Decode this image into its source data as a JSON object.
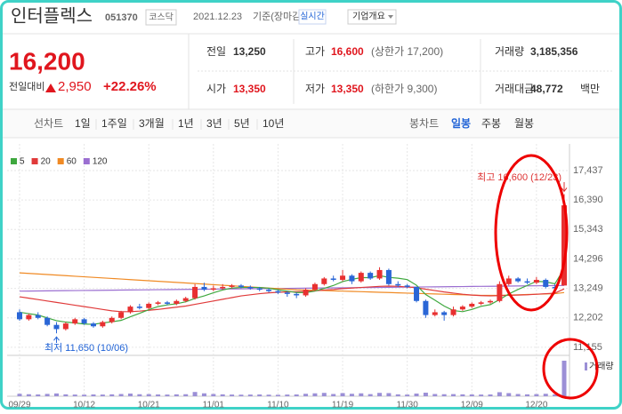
{
  "header": {
    "name": "인터플렉스",
    "code": "051370",
    "market": "코스닥",
    "date": "2021.12.23",
    "basis": "기준(장마감)",
    "realtime": "실시간",
    "company_info": "기업개요"
  },
  "price": {
    "current": "16,200",
    "compare_label": "전일대비",
    "change": "2,950",
    "change_pct": "+22.26%"
  },
  "stats": [
    {
      "label": "전일",
      "value": "13,250"
    },
    {
      "label": "고가",
      "value": "16,600",
      "note": "(상한가 17,200)"
    },
    {
      "label": "거래량",
      "value": "3,185,356"
    },
    {
      "label": "시가",
      "value": "13,350"
    },
    {
      "label": "저가",
      "value": "13,350",
      "note": "(하한가 9,300)"
    },
    {
      "label": "거래대금",
      "value": "48,772",
      "unit": "백만"
    }
  ],
  "tabs": {
    "line_label": "선차트",
    "line_tabs": [
      "1일",
      "1주일",
      "3개월",
      "1년",
      "3년",
      "5년",
      "10년"
    ],
    "candle_label": "봉차트",
    "candle_tabs": [
      "일봉",
      "주봉",
      "월봉"
    ]
  },
  "chart_data": {
    "type": "candlestick",
    "categories": [
      "09/29",
      null,
      null,
      null,
      null,
      null,
      null,
      "10/12",
      null,
      null,
      null,
      null,
      null,
      null,
      "10/21",
      null,
      null,
      null,
      null,
      null,
      null,
      "11/01",
      null,
      null,
      null,
      null,
      null,
      null,
      "11/10",
      null,
      null,
      null,
      null,
      null,
      null,
      "11/19",
      null,
      null,
      null,
      null,
      null,
      null,
      "11/30",
      null,
      null,
      null,
      null,
      null,
      null,
      "12/09",
      null,
      null,
      null,
      null,
      null,
      null,
      "12/20",
      null,
      null,
      null
    ],
    "candles": [
      [
        12400,
        12500,
        12100,
        12150
      ],
      [
        12150,
        12350,
        12100,
        12300
      ],
      [
        12300,
        12400,
        12150,
        12200
      ],
      [
        12200,
        12250,
        11900,
        11950
      ],
      [
        11950,
        12050,
        11650,
        11800
      ],
      [
        11800,
        12050,
        11750,
        12000
      ],
      [
        12000,
        12200,
        11950,
        12150
      ],
      [
        12150,
        12200,
        11950,
        12000
      ],
      [
        12000,
        12050,
        11850,
        11900
      ],
      [
        11900,
        12100,
        11850,
        12050
      ],
      [
        12050,
        12250,
        12000,
        12200
      ],
      [
        12200,
        12450,
        12150,
        12400
      ],
      [
        12400,
        12650,
        12350,
        12600
      ],
      [
        12600,
        12700,
        12500,
        12550
      ],
      [
        12550,
        12750,
        12500,
        12700
      ],
      [
        12700,
        12800,
        12650,
        12750
      ],
      [
        12750,
        12800,
        12650,
        12700
      ],
      [
        12700,
        12850,
        12650,
        12800
      ],
      [
        12800,
        12950,
        12750,
        12900
      ],
      [
        12900,
        13400,
        12850,
        13300
      ],
      [
        13300,
        13450,
        13150,
        13200
      ],
      [
        13200,
        13350,
        13150,
        13250
      ],
      [
        13250,
        13400,
        13200,
        13300
      ],
      [
        13300,
        13400,
        13250,
        13350
      ],
      [
        13350,
        13400,
        13250,
        13300
      ],
      [
        13300,
        13350,
        13200,
        13250
      ],
      [
        13250,
        13300,
        13150,
        13200
      ],
      [
        13200,
        13250,
        13100,
        13150
      ],
      [
        13150,
        13200,
        13050,
        13100
      ],
      [
        13100,
        13150,
        12950,
        13050
      ],
      [
        13050,
        13100,
        12900,
        13000
      ],
      [
        13000,
        13250,
        12950,
        13200
      ],
      [
        13200,
        13450,
        13150,
        13400
      ],
      [
        13400,
        13650,
        13350,
        13600
      ],
      [
        13600,
        13700,
        13500,
        13550
      ],
      [
        13550,
        13900,
        13500,
        13700
      ],
      [
        13700,
        13750,
        13400,
        13500
      ],
      [
        13500,
        13850,
        13450,
        13800
      ],
      [
        13800,
        13850,
        13550,
        13600
      ],
      [
        13600,
        14000,
        13550,
        13900
      ],
      [
        13900,
        13950,
        13350,
        13400
      ],
      [
        13400,
        13500,
        13300,
        13350
      ],
      [
        13350,
        13400,
        13250,
        13300
      ],
      [
        13300,
        13300,
        12750,
        12800
      ],
      [
        12800,
        12850,
        12200,
        12300
      ],
      [
        12300,
        12500,
        12250,
        12400
      ],
      [
        12400,
        12450,
        12100,
        12300
      ],
      [
        12300,
        12600,
        12250,
        12500
      ],
      [
        12500,
        12650,
        12450,
        12600
      ],
      [
        12600,
        12750,
        12550,
        12700
      ],
      [
        12700,
        12800,
        12650,
        12750
      ],
      [
        12750,
        12850,
        12700,
        12800
      ],
      [
        12800,
        13500,
        12750,
        13400
      ],
      [
        13400,
        13700,
        13350,
        13600
      ],
      [
        13600,
        13650,
        13450,
        13500
      ],
      [
        13500,
        13600,
        13400,
        13450
      ],
      [
        13450,
        13650,
        13400,
        13550
      ],
      [
        13550,
        13600,
        13250,
        13300
      ],
      [
        13300,
        13400,
        13200,
        13250
      ],
      [
        13350,
        16600,
        13350,
        16200
      ]
    ],
    "series": [
      {
        "name": "5",
        "color": "#3fa83f",
        "values": [
          12400,
          12350,
          12300,
          12200,
          12100,
          12050,
          12020,
          11980,
          11970,
          12020,
          12060,
          12110,
          12240,
          12360,
          12490,
          12600,
          12660,
          12700,
          12770,
          12890,
          12980,
          13090,
          13190,
          13260,
          13280,
          13280,
          13280,
          13250,
          13200,
          13150,
          13100,
          13100,
          13150,
          13250,
          13350,
          13490,
          13570,
          13630,
          13630,
          13700,
          13640,
          13610,
          13560,
          13360,
          13030,
          12830,
          12620,
          12460,
          12420,
          12500,
          12610,
          12670,
          12850,
          13050,
          13210,
          13350,
          13500,
          13480,
          13410,
          13950
        ]
      },
      {
        "name": "20",
        "color": "#e03a3a",
        "values": [
          12950,
          12900,
          12850,
          12800,
          12750,
          12700,
          12650,
          12600,
          12550,
          12500,
          12450,
          12420,
          12420,
          12440,
          12470,
          12500,
          12540,
          12580,
          12620,
          12680,
          12740,
          12800,
          12860,
          12920,
          12980,
          13020,
          13060,
          13090,
          13110,
          13120,
          13130,
          13140,
          13160,
          13190,
          13210,
          13240,
          13260,
          13280,
          13300,
          13320,
          13330,
          13320,
          13300,
          13270,
          13220,
          13170,
          13120,
          13080,
          13040,
          13010,
          12990,
          12980,
          12990,
          13000,
          13010,
          13020,
          13040,
          13060,
          13080,
          13230
        ]
      },
      {
        "name": "60",
        "color": "#f08a24",
        "values": [
          13800,
          13780,
          13760,
          13740,
          13720,
          13700,
          13680,
          13660,
          13640,
          13620,
          13600,
          13580,
          13560,
          13540,
          13520,
          13500,
          13480,
          13460,
          13440,
          13420,
          13400,
          13380,
          13360,
          13340,
          13320,
          13300,
          13280,
          13260,
          13240,
          13220,
          13200,
          13190,
          13180,
          13170,
          13160,
          13150,
          13140,
          13130,
          13120,
          13110,
          13100,
          13090,
          13080,
          13070,
          13060,
          13050,
          13040,
          13030,
          13020,
          13010,
          13000,
          13000,
          13000,
          13010,
          13020,
          13030,
          13040,
          13050,
          13060,
          13100
        ]
      },
      {
        "name": "120",
        "color": "#9b6fd1",
        "values": [
          13150,
          13153,
          13157,
          13160,
          13164,
          13167,
          13170,
          13174,
          13177,
          13181,
          13184,
          13187,
          13191,
          13194,
          13198,
          13201,
          13204,
          13208,
          13211,
          13215,
          13218,
          13221,
          13225,
          13228,
          13232,
          13235,
          13238,
          13242,
          13245,
          13249,
          13252,
          13255,
          13259,
          13262,
          13266,
          13269,
          13272,
          13276,
          13279,
          13283,
          13286,
          13289,
          13293,
          13296,
          13300,
          13303,
          13306,
          13310,
          13313,
          13317,
          13320,
          13323,
          13327,
          13330,
          13334,
          13337,
          13340,
          13344,
          13347,
          13351
        ]
      }
    ],
    "volume": [
      220000,
      180000,
      160000,
      210000,
      250000,
      170000,
      150000,
      140000,
      160000,
      150000,
      170000,
      200000,
      240000,
      180000,
      190000,
      160000,
      150000,
      170000,
      180000,
      380000,
      260000,
      200000,
      170000,
      150000,
      140000,
      150000,
      160000,
      140000,
      130000,
      150000,
      160000,
      220000,
      260000,
      300000,
      200000,
      280000,
      220000,
      260000,
      190000,
      300000,
      280000,
      170000,
      150000,
      240000,
      320000,
      200000,
      180000,
      190000,
      170000,
      160000,
      150000,
      160000,
      360000,
      280000,
      200000,
      170000,
      190000,
      220000,
      160000,
      3185356
    ],
    "volume_label": "거래량",
    "volume_color": "#9b8fd6",
    "up_color": "#e83030",
    "down_color": "#2a66d6",
    "ylim": [
      10930,
      18130
    ],
    "yticks": [
      {
        "value": 11155,
        "label": "11,155"
      },
      {
        "value": 12202,
        "label": "12,202"
      },
      {
        "value": 13249,
        "label": "13,249"
      },
      {
        "value": 14296,
        "label": "14,296"
      },
      {
        "value": 15343,
        "label": "15,343"
      },
      {
        "value": 16390,
        "label": "16,390"
      },
      {
        "value": 17437,
        "label": "17,437"
      }
    ],
    "grid": true,
    "annotations": {
      "high": "최고 16,600 (12/23)",
      "low": "최저 11,650 (10/06)"
    }
  }
}
